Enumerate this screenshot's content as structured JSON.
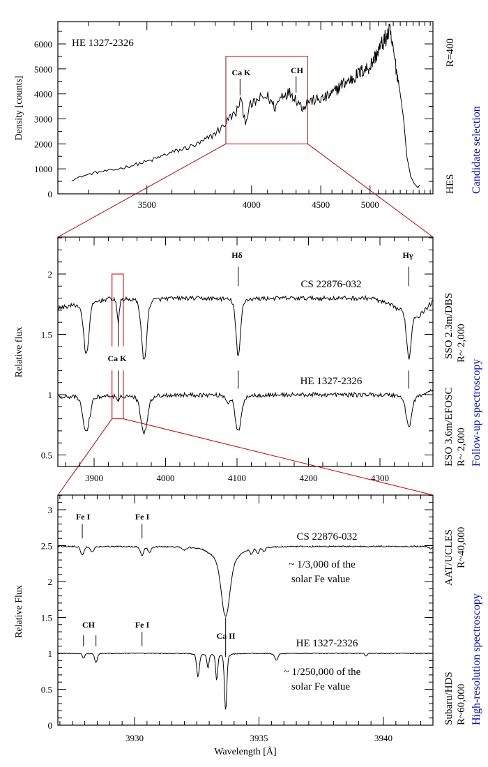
{
  "colors": {
    "zoom_box": "#cc0000",
    "method_label": "#0000cc",
    "spectrum": "#000000"
  },
  "x_axis_label": "Wavelength [Å]",
  "chart_data": [
    {
      "type": "line",
      "ylabel": "Density [counts]",
      "xlim": [
        3211,
        5950
      ],
      "ylim": [
        0,
        6900
      ],
      "x_scale": "nonlinear (prism dispersion)",
      "xticks": [
        3500,
        4000,
        4500,
        5000
      ],
      "yticks": [
        0,
        1000,
        2000,
        3000,
        4000,
        5000,
        6000
      ],
      "object_label": "HE 1327-2326",
      "series": [
        {
          "name": "HE 1327-2326",
          "points": [
            [
              3250,
              550
            ],
            [
              3280,
              700
            ],
            [
              3320,
              850
            ],
            [
              3380,
              950
            ],
            [
              3450,
              1150
            ],
            [
              3520,
              1350
            ],
            [
              3580,
              1600
            ],
            [
              3650,
              1800
            ],
            [
              3720,
              2000
            ],
            [
              3780,
              2300
            ],
            [
              3840,
              2700
            ],
            [
              3880,
              3100
            ],
            [
              3910,
              3200
            ],
            [
              3935,
              3800
            ],
            [
              3950,
              3300
            ],
            [
              3965,
              2900
            ],
            [
              3990,
              3500
            ],
            [
              4050,
              3800
            ],
            [
              4100,
              3900
            ],
            [
              4150,
              3450
            ],
            [
              4200,
              4000
            ],
            [
              4260,
              4050
            ],
            [
              4300,
              3800
            ],
            [
              4350,
              3450
            ],
            [
              4390,
              3700
            ],
            [
              4450,
              3750
            ],
            [
              4520,
              3800
            ],
            [
              4600,
              4000
            ],
            [
              4700,
              4400
            ],
            [
              4800,
              4600
            ],
            [
              4900,
              4900
            ],
            [
              5000,
              5100
            ],
            [
              5080,
              5600
            ],
            [
              5150,
              6000
            ],
            [
              5250,
              6500
            ],
            [
              5300,
              5700
            ],
            [
              5360,
              4700
            ],
            [
              5400,
              4000
            ],
            [
              5450,
              3000
            ],
            [
              5500,
              1500
            ],
            [
              5560,
              700
            ],
            [
              5620,
              400
            ],
            [
              5680,
              250
            ],
            [
              5710,
              350
            ]
          ]
        }
      ],
      "line_marks": [
        {
          "label": "Ca K",
          "wavelength": 3933,
          "from": 3950,
          "to": 4600
        },
        {
          "label": "CH",
          "wavelength": 4300,
          "from": 4050,
          "to": 4700
        }
      ],
      "zoom_box": {
        "x": [
          3855,
          4390
        ],
        "y": [
          2000,
          5500
        ]
      },
      "right_labels": {
        "top": "R=400",
        "bottom": "HES",
        "method": "Candidate selection"
      }
    },
    {
      "type": "line",
      "ylabel": "Relative flux",
      "xlim": [
        3850,
        4375
      ],
      "ylim": [
        0.4,
        2.3
      ],
      "xticks": [
        3900,
        4000,
        4100,
        4200,
        4300
      ],
      "yticks": [
        0.5,
        1,
        1.5,
        2
      ],
      "series": [
        {
          "name": "CS 22876-032",
          "continuum": [
            [
              3850,
              1.72
            ],
            [
              3880,
              1.76
            ],
            [
              3920,
              1.8
            ],
            [
              4000,
              1.8
            ],
            [
              4290,
              1.8
            ],
            [
              4325,
              1.72
            ],
            [
              4355,
              1.66
            ],
            [
              4375,
              1.78
            ]
          ],
          "lines": [
            {
              "wavelength": 3889,
              "min": 1.33,
              "sigma": 3.5
            },
            {
              "wavelength": 3933.7,
              "min": 1.6,
              "sigma": 1.5
            },
            {
              "wavelength": 3970,
              "min": 1.28,
              "sigma": 3.5
            },
            {
              "wavelength": 4101.7,
              "min": 1.31,
              "sigma": 3
            },
            {
              "wavelength": 4340.5,
              "min": 1.3,
              "sigma": 3
            }
          ]
        },
        {
          "name": "HE 1327-2326",
          "continuum": [
            [
              3850,
              0.99
            ],
            [
              4000,
              1.0
            ],
            [
              4360,
              1.0
            ],
            [
              4375,
              1.05
            ]
          ],
          "lines": [
            {
              "wavelength": 3889,
              "min": 0.69,
              "sigma": 4.5
            },
            {
              "wavelength": 3933.7,
              "min": 0.94,
              "sigma": 2
            },
            {
              "wavelength": 3970,
              "min": 0.69,
              "sigma": 4.5
            },
            {
              "wavelength": 4087,
              "min": 0.94,
              "sigma": 2
            },
            {
              "wavelength": 4101.7,
              "min": 0.69,
              "sigma": 4
            },
            {
              "wavelength": 4340.5,
              "min": 0.74,
              "sigma": 4
            }
          ]
        }
      ],
      "series_label_flux": [
        1.92,
        1.12
      ],
      "line_marks": [
        {
          "label": "Hδ",
          "wavelength": 4101.7
        },
        {
          "label": "Hγ",
          "wavelength": 4340.5
        },
        {
          "label": "Ca K",
          "wavelength": 3933.7
        }
      ],
      "zoom_box": {
        "x": [
          3925,
          3941
        ],
        "y": [
          0.8,
          2.0
        ]
      },
      "right_labels": {
        "upper_instrument": "SSO 2.3m/DBS",
        "upper_resolution": "R~ 2,000",
        "lower_instrument": "ESO 3.6m/EFOSC",
        "lower_resolution": "R~ 2,000",
        "method": "Follow-up spectroscopy"
      }
    },
    {
      "type": "line",
      "ylabel": "Relative Flux",
      "xlabel": "Wavelength [Å]",
      "xlim": [
        3926.9,
        3942.0
      ],
      "ylim": [
        0,
        3.2
      ],
      "xticks": [
        3930,
        3935,
        3940
      ],
      "yticks": [
        0,
        0.5,
        1,
        1.5,
        2,
        2.5,
        3
      ],
      "series": [
        {
          "name": "CS 22876-032",
          "continuum": [
            [
              3926.9,
              2.49
            ],
            [
              3942,
              2.49
            ]
          ],
          "lines": [
            {
              "wavelength": 3927.9,
              "min": 2.37,
              "sigma": 0.06
            },
            {
              "wavelength": 3928.3,
              "min": 2.41,
              "sigma": 0.06
            },
            {
              "wavelength": 3930.3,
              "min": 2.36,
              "sigma": 0.06
            },
            {
              "wavelength": 3930.6,
              "min": 2.41,
              "sigma": 0.06
            },
            {
              "wavelength": 3932.0,
              "min": 2.45,
              "sigma": 0.08
            },
            {
              "wavelength": 3933.66,
              "min": 1.7,
              "sigma": 0.16
            },
            {
              "wavelength": 3933.66,
              "min": 2.3,
              "sigma": 0.45
            },
            {
              "wavelength": 3934.7,
              "min": 2.41,
              "sigma": 0.05
            },
            {
              "wavelength": 3934.95,
              "min": 2.41,
              "sigma": 0.05
            },
            {
              "wavelength": 3935.2,
              "min": 2.43,
              "sigma": 0.05
            },
            {
              "wavelength": 3941.9,
              "min": 2.45,
              "sigma": 0.05
            }
          ],
          "note": [
            "~ 1/3,000 of the",
            "solar Fe value"
          ]
        },
        {
          "name": "HE 1327-2326",
          "continuum": [
            [
              3926.9,
              1.0
            ],
            [
              3942,
              1.0
            ]
          ],
          "lines": [
            {
              "wavelength": 3927.95,
              "min": 0.93,
              "sigma": 0.04
            },
            {
              "wavelength": 3928.45,
              "min": 0.87,
              "sigma": 0.05
            },
            {
              "wavelength": 3932.55,
              "min": 0.67,
              "sigma": 0.05
            },
            {
              "wavelength": 3932.95,
              "min": 0.8,
              "sigma": 0.04
            },
            {
              "wavelength": 3933.3,
              "min": 0.63,
              "sigma": 0.04
            },
            {
              "wavelength": 3933.66,
              "min": 0.2,
              "sigma": 0.045
            },
            {
              "wavelength": 3935.7,
              "min": 0.9,
              "sigma": 0.06
            },
            {
              "wavelength": 3939.3,
              "min": 0.96,
              "sigma": 0.04
            }
          ],
          "note": [
            "~ 1/250,000 of the",
            "solar Fe value"
          ]
        }
      ],
      "series_label_flux": [
        2.68,
        1.12
      ],
      "line_marks": [
        {
          "label": "Fe I",
          "wavelength": 3927.9,
          "from": 2.6,
          "to": 2.8
        },
        {
          "label": "Fe I",
          "wavelength": 3930.3,
          "from": 2.6,
          "to": 2.8
        },
        {
          "label": "CH",
          "wavelength": [
            3927.95,
            3928.45
          ],
          "from": 1.1,
          "to": 1.25
        },
        {
          "label": "Fe I",
          "wavelength": 3930.3,
          "from": 1.1,
          "to": 1.3
        },
        {
          "label": "Ca II",
          "wavelength": 3933.66,
          "from": 0.95,
          "to": 1.5
        }
      ],
      "right_labels": {
        "upper_instrument": "AAT/UCLES",
        "upper_resolution": "R~40,000",
        "lower_instrument": "Subaru/HDS",
        "lower_resolution": "R~60,000",
        "method": "High-resolution spectroscopy"
      }
    }
  ]
}
